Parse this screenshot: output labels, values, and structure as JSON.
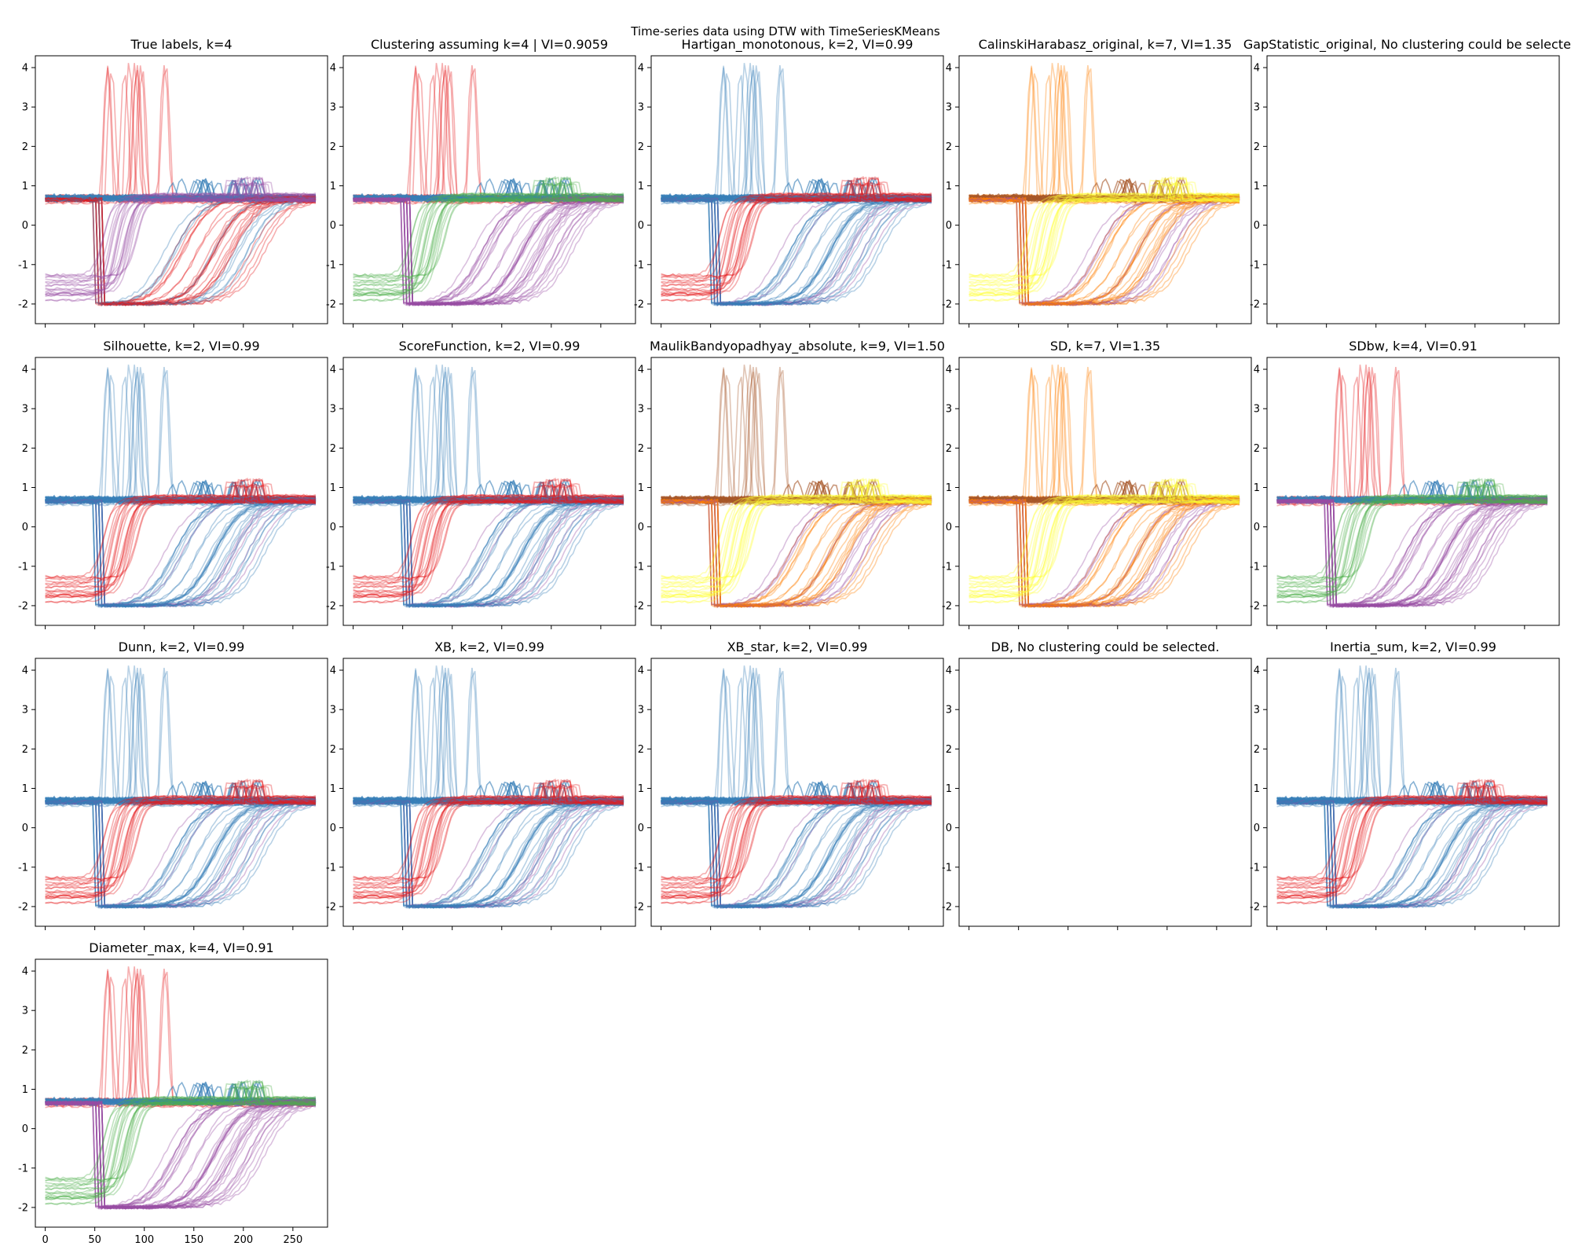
{
  "figure": {
    "suptitle": "Time-series data using DTW with TimeSeriesKMeans"
  },
  "chart_data": {
    "type": "line",
    "layout": {
      "rows": 4,
      "cols": 5
    },
    "x_ticks": [
      0,
      50,
      100,
      150,
      200,
      250
    ],
    "y_ticks": [
      -2,
      -1,
      0,
      1,
      2,
      3,
      4
    ],
    "xlim": [
      -10,
      285
    ],
    "ylim": [
      -2.5,
      4.3
    ],
    "series_length": 275,
    "palette": [
      "#e41a1c",
      "#377eb8",
      "#4daf4a",
      "#984ea3",
      "#ff7f00",
      "#ffff33",
      "#a65628",
      "#f781bf",
      "#999999"
    ],
    "true_classes": [
      {
        "shape": "spike",
        "count": 12,
        "onset_range": [
          48,
          115
        ]
      },
      {
        "shape": "flat",
        "count": 22
      },
      {
        "shape": "late_sigmoid",
        "count": 35,
        "mid_range": [
          120,
          225
        ]
      },
      {
        "shape": "early_sigmoid",
        "count": 20,
        "mid_range": [
          52,
          95
        ]
      }
    ],
    "panels": [
      {
        "title": "True labels, k=4",
        "status": "plotted",
        "colors": [
          "#e41a1c",
          "#377eb8",
          "#e41a1c",
          "#984ea3"
        ]
      },
      {
        "title": "Clustering assuming k=4 | VI=0.9059",
        "status": "plotted",
        "colors": [
          "#e41a1c",
          "#377eb8",
          "#984ea3",
          "#4daf4a"
        ]
      },
      {
        "title": "Hartigan_monotonous, k=2, VI=0.99",
        "status": "plotted",
        "colors": [
          "#377eb8",
          "#377eb8",
          "#377eb8",
          "#e41a1c"
        ]
      },
      {
        "title": "CalinskiHarabasz_original, k=7, VI=1.35",
        "status": "plotted",
        "colors": [
          "#ff7f00",
          "#a65628",
          "#ff7f00",
          "#ffff33"
        ]
      },
      {
        "title": "GapStatistic_original, No clustering could be selected.",
        "status": "empty",
        "colors": []
      },
      {
        "title": "Silhouette, k=2, VI=0.99",
        "status": "plotted",
        "colors": [
          "#377eb8",
          "#377eb8",
          "#377eb8",
          "#e41a1c"
        ]
      },
      {
        "title": "ScoreFunction, k=2, VI=0.99",
        "status": "plotted",
        "colors": [
          "#377eb8",
          "#377eb8",
          "#377eb8",
          "#e41a1c"
        ]
      },
      {
        "title": "MaulikBandyopadhyay_absolute, k=9, VI=1.50",
        "status": "plotted",
        "colors": [
          "#a65628",
          "#a65628",
          "#ff7f00",
          "#ffff33"
        ]
      },
      {
        "title": "SD, k=7, VI=1.35",
        "status": "plotted",
        "colors": [
          "#ff7f00",
          "#a65628",
          "#ff7f00",
          "#ffff33"
        ]
      },
      {
        "title": "SDbw, k=4, VI=0.91",
        "status": "plotted",
        "colors": [
          "#e41a1c",
          "#377eb8",
          "#984ea3",
          "#4daf4a"
        ]
      },
      {
        "title": "Dunn, k=2, VI=0.99",
        "status": "plotted",
        "colors": [
          "#377eb8",
          "#377eb8",
          "#377eb8",
          "#e41a1c"
        ]
      },
      {
        "title": "XB, k=2, VI=0.99",
        "status": "plotted",
        "colors": [
          "#377eb8",
          "#377eb8",
          "#377eb8",
          "#e41a1c"
        ]
      },
      {
        "title": "XB_star, k=2, VI=0.99",
        "status": "plotted",
        "colors": [
          "#377eb8",
          "#377eb8",
          "#377eb8",
          "#e41a1c"
        ]
      },
      {
        "title": "DB, No clustering could be selected.",
        "status": "empty",
        "colors": []
      },
      {
        "title": "Inertia_sum, k=2, VI=0.99",
        "status": "plotted",
        "colors": [
          "#377eb8",
          "#377eb8",
          "#377eb8",
          "#e41a1c"
        ]
      },
      {
        "title": "Diameter_max, k=4, VI=0.91",
        "status": "plotted",
        "colors": [
          "#e41a1c",
          "#377eb8",
          "#984ea3",
          "#4daf4a"
        ]
      }
    ]
  }
}
